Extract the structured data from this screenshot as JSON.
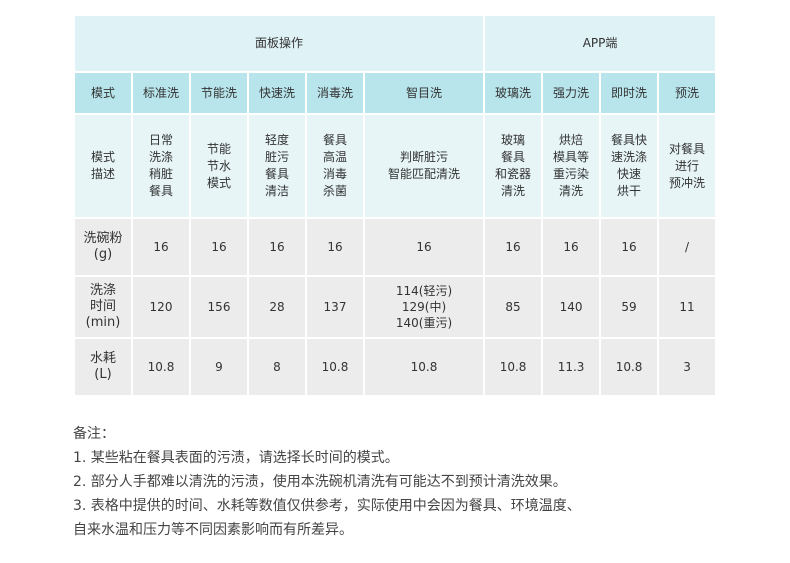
{
  "groups": {
    "panel": "面板操作",
    "app": "APP端"
  },
  "header": {
    "mode_label": "模式",
    "modes": [
      "标准洗",
      "节能洗",
      "快速洗",
      "消毒洗",
      "智目洗",
      "玻璃洗",
      "强力洗",
      "即时洗",
      "预洗"
    ]
  },
  "desc_row": {
    "label": "模式\n描述",
    "cells": [
      "日常\n洗涤\n稍脏\n餐具",
      "节能\n节水\n模式",
      "轻度\n脏污\n餐具\n清洁",
      "餐具\n高温\n消毒\n杀菌",
      "判断脏污\n智能匹配清洗",
      "玻璃\n餐具\n和瓷器\n清洗",
      "烘焙\n模具等\n重污染\n清洗",
      "餐具快\n速洗涤\n快速\n烘干",
      "对餐具\n进行\n预冲洗"
    ]
  },
  "powder_row": {
    "label": "洗碗粉\n(g)",
    "cells": [
      "16",
      "16",
      "16",
      "16",
      "16",
      "16",
      "16",
      "16",
      "/"
    ]
  },
  "time_row": {
    "label": "洗涤\n时间\n(min)",
    "cells": [
      "120",
      "156",
      "28",
      "137",
      "114(轻污)\n129(中)\n140(重污)",
      "85",
      "140",
      "59",
      "11"
    ]
  },
  "water_row": {
    "label": "水耗\n(L)",
    "cells": [
      "10.8",
      "9",
      "8",
      "10.8",
      "10.8",
      "10.8",
      "11.3",
      "10.8",
      "3"
    ]
  },
  "notes": {
    "title": "备注：",
    "lines": [
      "1. 某些粘在餐具表面的污渍，请选择长时间的模式。",
      "2. 部分人手都难以清洗的污渍，使用本洗碗机清洗有可能达不到预计清洗效果。",
      "3. 表格中提供的时间、水耗等数值仅供参考，实际使用中会因为餐具、环境温度、",
      "自来水温和压力等不同因素影响而有所差异。"
    ]
  }
}
